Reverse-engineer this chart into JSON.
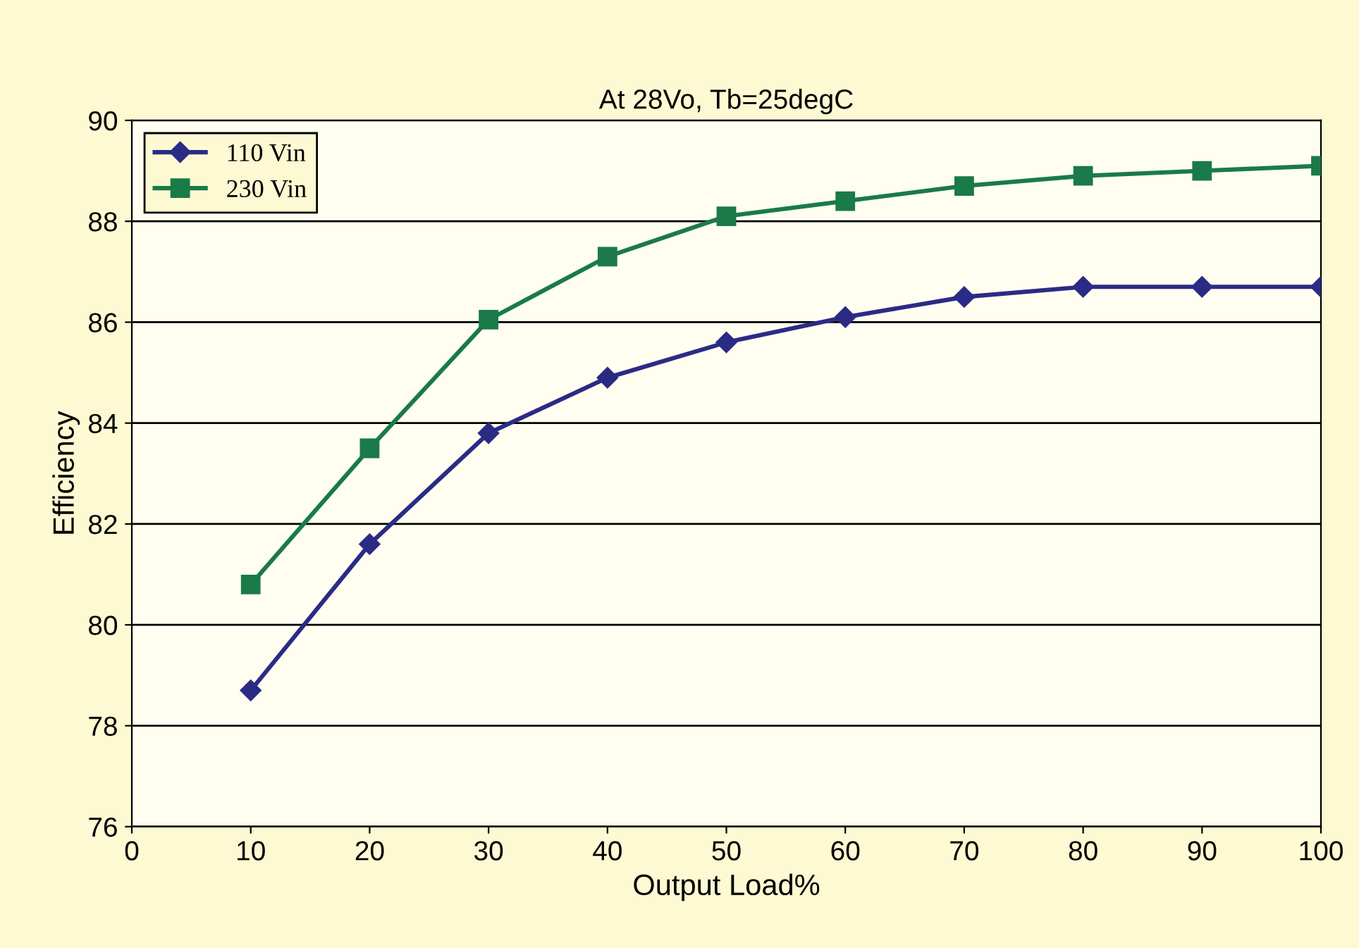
{
  "chart_data": {
    "type": "line",
    "title": "At 28Vo, Tb=25degC",
    "xlabel": "Output Load%",
    "ylabel": "Efficiency",
    "x": [
      10,
      20,
      30,
      40,
      50,
      60,
      70,
      80,
      90,
      100
    ],
    "series": [
      {
        "name": "110 Vin",
        "color": "#2b2b86",
        "marker": "diamond",
        "values": [
          78.7,
          81.6,
          83.8,
          84.9,
          85.6,
          86.1,
          86.5,
          86.7,
          86.7,
          86.7
        ]
      },
      {
        "name": "230 Vin",
        "color": "#1a7a48",
        "marker": "square",
        "values": [
          80.8,
          83.5,
          86.05,
          87.3,
          88.1,
          88.4,
          88.7,
          88.9,
          89.0,
          89.1
        ]
      }
    ],
    "xlim": [
      0,
      100
    ],
    "xticks": [
      0,
      10,
      20,
      30,
      40,
      50,
      60,
      70,
      80,
      90,
      100
    ],
    "ylim": [
      76,
      90
    ],
    "yticks": [
      76,
      78,
      80,
      82,
      84,
      86,
      88,
      90
    ],
    "grid": "y",
    "legend": "top left",
    "line_style": "solid"
  }
}
